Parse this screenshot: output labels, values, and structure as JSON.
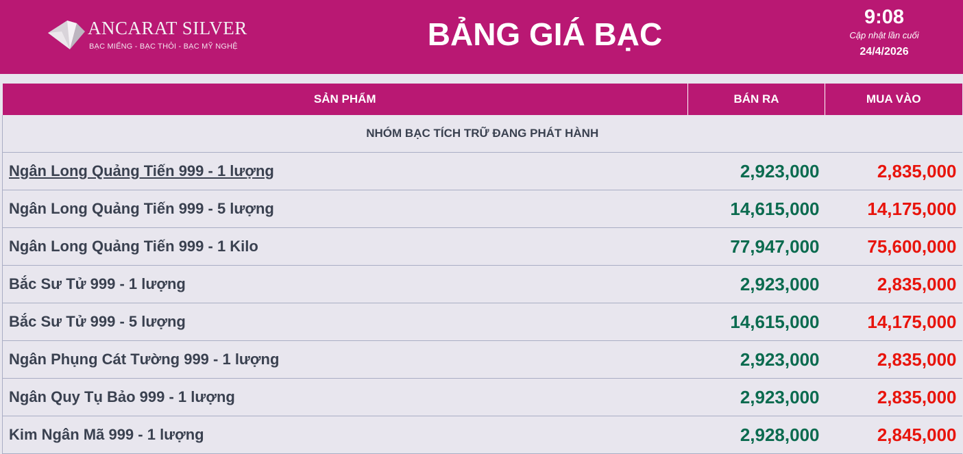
{
  "header": {
    "brand": "ANCARAT SILVER",
    "tagline": "BẠC MIẾNG - BẠC THỎI - BẠC MỸ NGHỆ",
    "title": "BẢNG GIÁ BẠC",
    "time": "9:08",
    "updated_label": "Cập nhật lần cuối",
    "date": "24/4/2026",
    "color": "#b91873"
  },
  "table": {
    "columns": [
      "SẢN PHẨM",
      "BÁN RA",
      "MUA VÀO"
    ],
    "group": "NHÓM BẠC TÍCH TRỮ ĐANG PHÁT HÀNH",
    "rows": [
      {
        "name": "Ngân Long Quảng Tiến 999 - 1 lượng",
        "sell": "2,923,000",
        "buy": "2,835,000"
      },
      {
        "name": "Ngân Long Quảng Tiến 999 - 5 lượng",
        "sell": "14,615,000",
        "buy": "14,175,000"
      },
      {
        "name": "Ngân Long Quảng Tiến 999 - 1 Kilo",
        "sell": "77,947,000",
        "buy": "75,600,000"
      },
      {
        "name": "Bắc Sư Tử 999 - 1 lượng",
        "sell": "2,923,000",
        "buy": "2,835,000"
      },
      {
        "name": "Bắc Sư Tử 999 - 5 lượng",
        "sell": "14,615,000",
        "buy": "14,175,000"
      },
      {
        "name": "Ngân Phụng Cát Tường 999 - 1 lượng",
        "sell": "2,923,000",
        "buy": "2,835,000"
      },
      {
        "name": "Ngân Quy Tụ Bảo 999 - 1 lượng",
        "sell": "2,923,000",
        "buy": "2,835,000"
      },
      {
        "name": "Kim Ngân Mã 999 - 1 lượng",
        "sell": "2,928,000",
        "buy": "2,845,000"
      }
    ]
  }
}
